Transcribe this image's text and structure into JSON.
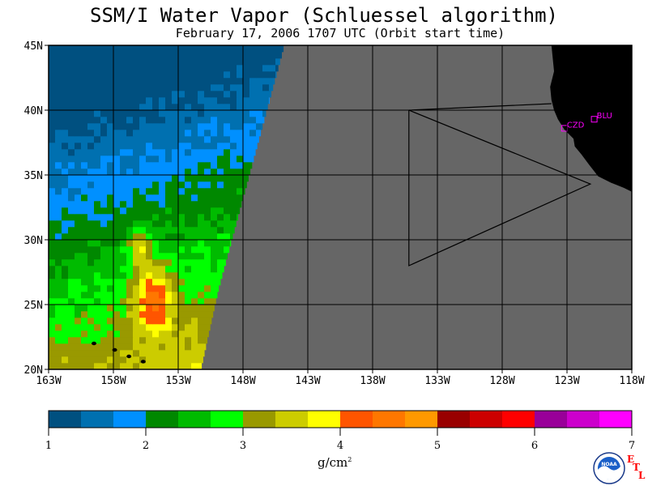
{
  "title": "SSM/I Water Vapor (Schluessel algorithm)",
  "subtitle": "February 17, 2006  1707 UTC  (Orbit start time)",
  "map": {
    "lat_range": [
      20,
      45
    ],
    "lon_range": [
      -163,
      -118
    ],
    "lat_labels": [
      "45N",
      "40N",
      "35N",
      "30N",
      "25N",
      "20N"
    ],
    "lon_labels": [
      "163W",
      "158W",
      "153W",
      "148W",
      "143W",
      "138W",
      "133W",
      "128W",
      "123W",
      "118W"
    ],
    "no_data_color": "#666666",
    "land_color": "#000000",
    "stations": [
      {
        "code": "CZD",
        "lat": 38.6,
        "lon": -123.2
      },
      {
        "code": "BLU",
        "lat": 39.3,
        "lon": -120.9
      }
    ]
  },
  "colorbar": {
    "colors": [
      "#005080",
      "#0070b0",
      "#0090ff",
      "#008800",
      "#00bb00",
      "#00ff00",
      "#999900",
      "#cccc00",
      "#ffff00",
      "#ff5500",
      "#ff7700",
      "#ff9900",
      "#990000",
      "#cc0000",
      "#ff0000",
      "#990099",
      "#cc00cc",
      "#ff00ff"
    ],
    "tick_labels": [
      "1",
      "2",
      "3",
      "4",
      "5",
      "6",
      "7"
    ],
    "units": "g/cm",
    "units_sup": "2"
  },
  "logos": {
    "noaa": "NOAA",
    "etl": [
      "E",
      "T",
      "L"
    ]
  }
}
